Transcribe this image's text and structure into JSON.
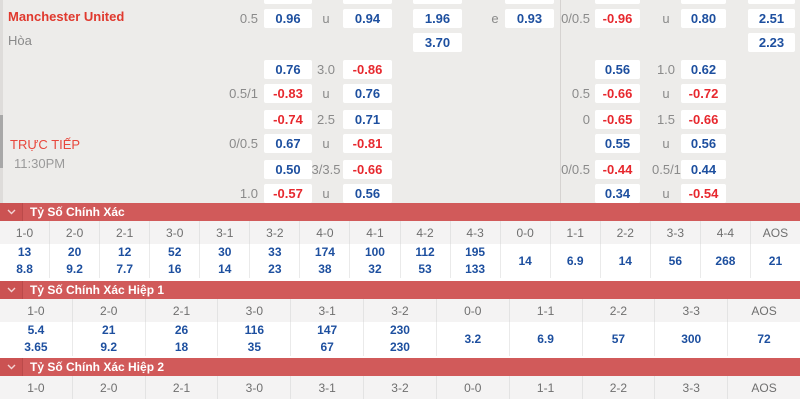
{
  "match": {
    "home_team": "Manchester United",
    "draw_label": "Hòa",
    "live_label": "TRỰC TIẾP",
    "time": "11:30PM"
  },
  "colors": {
    "banner_red": "#d15a5a",
    "value_blue": "#1d4f9f",
    "value_red": "#e7282e",
    "team_red": "#e0392e",
    "section_bg": "#edecea"
  },
  "odds": {
    "rows": [
      {
        "cells": [
          {
            "col": "aL",
            "text": "0.5",
            "kind": "label"
          },
          {
            "col": "aB",
            "text": "0.96",
            "kind": "blue"
          },
          {
            "col": "bL",
            "text": "u",
            "kind": "label"
          },
          {
            "col": "bB",
            "text": "0.94",
            "kind": "blue"
          },
          {
            "col": "cB",
            "text": "1.96",
            "kind": "blue"
          },
          {
            "col": "dL",
            "text": "e",
            "kind": "label"
          },
          {
            "col": "dB",
            "text": "0.93",
            "kind": "blue"
          },
          {
            "col": "eL",
            "text": "0/0.5",
            "kind": "label"
          },
          {
            "col": "eB",
            "text": "-0.96",
            "kind": "red"
          },
          {
            "col": "fL",
            "text": "u",
            "kind": "label"
          },
          {
            "col": "fB",
            "text": "0.80",
            "kind": "blue"
          },
          {
            "col": "gB",
            "text": "2.51",
            "kind": "blue"
          }
        ]
      },
      {
        "cells": [
          {
            "col": "cB",
            "text": "3.70",
            "kind": "blue"
          },
          {
            "col": "gB",
            "text": "2.23",
            "kind": "blue"
          }
        ]
      },
      {
        "cells": [
          {
            "col": "aB",
            "text": "0.76",
            "kind": "blue"
          },
          {
            "col": "bL",
            "text": "3.0",
            "kind": "label"
          },
          {
            "col": "bB",
            "text": "-0.86",
            "kind": "red"
          },
          {
            "col": "eB",
            "text": "0.56",
            "kind": "blue"
          },
          {
            "col": "fL",
            "text": "1.0",
            "kind": "label"
          },
          {
            "col": "fB",
            "text": "0.62",
            "kind": "blue"
          }
        ]
      },
      {
        "cells": [
          {
            "col": "aL",
            "text": "0.5/1",
            "kind": "label"
          },
          {
            "col": "aB",
            "text": "-0.83",
            "kind": "red"
          },
          {
            "col": "bL",
            "text": "u",
            "kind": "label"
          },
          {
            "col": "bB",
            "text": "0.76",
            "kind": "blue"
          },
          {
            "col": "eL",
            "text": "0.5",
            "kind": "label"
          },
          {
            "col": "eB",
            "text": "-0.66",
            "kind": "red"
          },
          {
            "col": "fL",
            "text": "u",
            "kind": "label"
          },
          {
            "col": "fB",
            "text": "-0.72",
            "kind": "red"
          }
        ]
      },
      {
        "cells": [
          {
            "col": "aB",
            "text": "-0.74",
            "kind": "red"
          },
          {
            "col": "bL",
            "text": "2.5",
            "kind": "label"
          },
          {
            "col": "bB",
            "text": "0.71",
            "kind": "blue"
          },
          {
            "col": "eL",
            "text": "0",
            "kind": "label"
          },
          {
            "col": "eB",
            "text": "-0.65",
            "kind": "red"
          },
          {
            "col": "fL",
            "text": "1.5",
            "kind": "label"
          },
          {
            "col": "fB",
            "text": "-0.66",
            "kind": "red"
          }
        ]
      },
      {
        "cells": [
          {
            "col": "aL",
            "text": "0/0.5",
            "kind": "label"
          },
          {
            "col": "aB",
            "text": "0.67",
            "kind": "blue"
          },
          {
            "col": "bL",
            "text": "u",
            "kind": "label"
          },
          {
            "col": "bB",
            "text": "-0.81",
            "kind": "red"
          },
          {
            "col": "eB",
            "text": "0.55",
            "kind": "blue"
          },
          {
            "col": "fL",
            "text": "u",
            "kind": "label"
          },
          {
            "col": "fB",
            "text": "0.56",
            "kind": "blue"
          }
        ]
      },
      {
        "cells": [
          {
            "col": "aB",
            "text": "0.50",
            "kind": "blue"
          },
          {
            "col": "bL",
            "text": "3/3.5",
            "kind": "label"
          },
          {
            "col": "bB",
            "text": "-0.66",
            "kind": "red"
          },
          {
            "col": "eL",
            "text": "0/0.5",
            "kind": "label"
          },
          {
            "col": "eB",
            "text": "-0.44",
            "kind": "red"
          },
          {
            "col": "fL",
            "text": "0.5/1",
            "kind": "label"
          },
          {
            "col": "fB",
            "text": "0.44",
            "kind": "blue"
          }
        ]
      },
      {
        "cells": [
          {
            "col": "aL",
            "text": "1.0",
            "kind": "label"
          },
          {
            "col": "aB",
            "text": "-0.57",
            "kind": "red"
          },
          {
            "col": "bL",
            "text": "u",
            "kind": "label"
          },
          {
            "col": "bB",
            "text": "0.56",
            "kind": "blue"
          },
          {
            "col": "eB",
            "text": "0.34",
            "kind": "blue"
          },
          {
            "col": "fL",
            "text": "u",
            "kind": "label"
          },
          {
            "col": "fB",
            "text": "-0.54",
            "kind": "red"
          }
        ]
      }
    ]
  },
  "score_tables": [
    {
      "title": "Tỷ Số Chính Xác",
      "columns": [
        {
          "label": "1-0",
          "values": [
            "13",
            "8.8"
          ]
        },
        {
          "label": "2-0",
          "values": [
            "20",
            "9.2"
          ]
        },
        {
          "label": "2-1",
          "values": [
            "12",
            "7.7"
          ]
        },
        {
          "label": "3-0",
          "values": [
            "52",
            "16"
          ]
        },
        {
          "label": "3-1",
          "values": [
            "30",
            "14"
          ]
        },
        {
          "label": "3-2",
          "values": [
            "33",
            "23"
          ]
        },
        {
          "label": "4-0",
          "values": [
            "174",
            "38"
          ]
        },
        {
          "label": "4-1",
          "values": [
            "100",
            "32"
          ]
        },
        {
          "label": "4-2",
          "values": [
            "112",
            "53"
          ]
        },
        {
          "label": "4-3",
          "values": [
            "195",
            "133"
          ]
        },
        {
          "label": "0-0",
          "values": [
            "14"
          ]
        },
        {
          "label": "1-1",
          "values": [
            "6.9"
          ]
        },
        {
          "label": "2-2",
          "values": [
            "14"
          ]
        },
        {
          "label": "3-3",
          "values": [
            "56"
          ]
        },
        {
          "label": "4-4",
          "values": [
            "268"
          ]
        },
        {
          "label": "AOS",
          "values": [
            "21"
          ]
        }
      ]
    },
    {
      "title": "Tỷ Số Chính Xác Hiệp 1",
      "columns": [
        {
          "label": "1-0",
          "values": [
            "5.4",
            "3.65"
          ]
        },
        {
          "label": "2-0",
          "values": [
            "21",
            "9.2"
          ]
        },
        {
          "label": "2-1",
          "values": [
            "26",
            "18"
          ]
        },
        {
          "label": "3-0",
          "values": [
            "116",
            "35"
          ]
        },
        {
          "label": "3-1",
          "values": [
            "147",
            "67"
          ]
        },
        {
          "label": "3-2",
          "values": [
            "230",
            "230"
          ]
        },
        {
          "label": "0-0",
          "values": [
            "3.2"
          ]
        },
        {
          "label": "1-1",
          "values": [
            "6.9"
          ]
        },
        {
          "label": "2-2",
          "values": [
            "57"
          ]
        },
        {
          "label": "3-3",
          "values": [
            "300"
          ]
        },
        {
          "label": "AOS",
          "values": [
            "72"
          ]
        }
      ]
    },
    {
      "title": "Tỷ Số Chính Xác Hiệp 2",
      "columns": [
        {
          "label": "1-0",
          "values": []
        },
        {
          "label": "2-0",
          "values": []
        },
        {
          "label": "2-1",
          "values": []
        },
        {
          "label": "3-0",
          "values": []
        },
        {
          "label": "3-1",
          "values": []
        },
        {
          "label": "3-2",
          "values": []
        },
        {
          "label": "0-0",
          "values": []
        },
        {
          "label": "1-1",
          "values": []
        },
        {
          "label": "2-2",
          "values": []
        },
        {
          "label": "3-3",
          "values": []
        },
        {
          "label": "AOS",
          "values": []
        }
      ]
    }
  ]
}
